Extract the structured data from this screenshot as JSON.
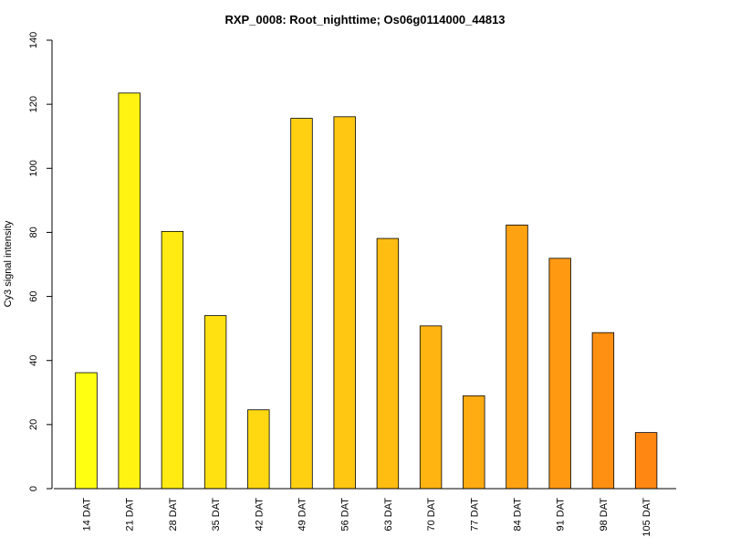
{
  "chart_data": {
    "type": "bar",
    "title": "RXP_0008: Root_nighttime; Os06g0114000_44813",
    "xlabel": "",
    "ylabel": "Cy3 signal intensity",
    "ylim": [
      0,
      140
    ],
    "yticks": [
      0,
      20,
      40,
      60,
      80,
      100,
      120,
      140
    ],
    "grid": false,
    "categories": [
      "14 DAT",
      "21 DAT",
      "28 DAT",
      "35 DAT",
      "42 DAT",
      "49 DAT",
      "56 DAT",
      "63 DAT",
      "70 DAT",
      "77 DAT",
      "84 DAT",
      "91 DAT",
      "98 DAT",
      "105 DAT"
    ],
    "values": [
      36.2,
      123.5,
      80.3,
      54.0,
      24.6,
      115.6,
      116.1,
      78.1,
      50.8,
      29.0,
      82.3,
      71.9,
      48.7,
      17.5
    ],
    "colors": [
      "#FFFF12",
      "#FFF312",
      "#FFEA12",
      "#FFE112",
      "#FFD812",
      "#FFCF12",
      "#FFC612",
      "#FFBD12",
      "#FFB412",
      "#FFAB12",
      "#FFA212",
      "#FF9912",
      "#FF9012",
      "#FF8712"
    ]
  }
}
